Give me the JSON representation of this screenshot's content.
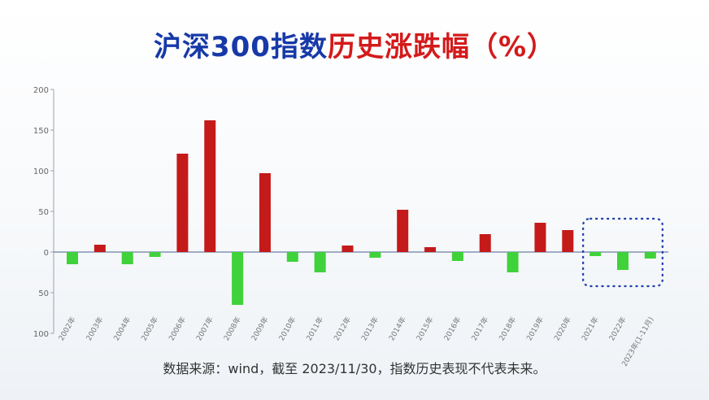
{
  "header": {
    "title_part1": "沪深300指数",
    "title_part2": "历史涨跌幅（%）"
  },
  "footnote": "数据来源：wind，截至 2023/11/30，指数历史表现不代表未来。",
  "colors": {
    "positive": "#c41a1a",
    "negative": "#3fd23a",
    "title_blue": "#1739a8",
    "title_red": "#d41a1a",
    "highlight_box": "#1f3fa8"
  },
  "chart_data": {
    "type": "bar",
    "title": "沪深300指数历史涨跌幅（%）",
    "categories": [
      "2002年",
      "2003年",
      "2004年",
      "2005年",
      "2006年",
      "2007年",
      "2008年",
      "2009年",
      "2010年",
      "2011年",
      "2012年",
      "2013年",
      "2014年",
      "2015年",
      "2016年",
      "2017年",
      "2018年",
      "2019年",
      "2020年",
      "2021年",
      "2022年",
      "2023年(1-11月)"
    ],
    "values": [
      -15,
      9,
      -15,
      -6,
      121,
      162,
      -65,
      97,
      -12,
      -25,
      8,
      -7,
      52,
      6,
      -11,
      22,
      -25,
      36,
      27,
      -5,
      -22,
      -8
    ],
    "ylim": [
      -100,
      200
    ],
    "yticks": [
      200,
      150,
      100,
      50,
      0,
      -50,
      -100
    ],
    "ytick_labels": [
      "200",
      "150",
      "100",
      "50",
      "0",
      "50",
      "100"
    ],
    "xlabel": "",
    "ylabel": "",
    "grid": false,
    "highlight_categories": [
      "2021年",
      "2022年",
      "2023年(1-11月)"
    ]
  }
}
